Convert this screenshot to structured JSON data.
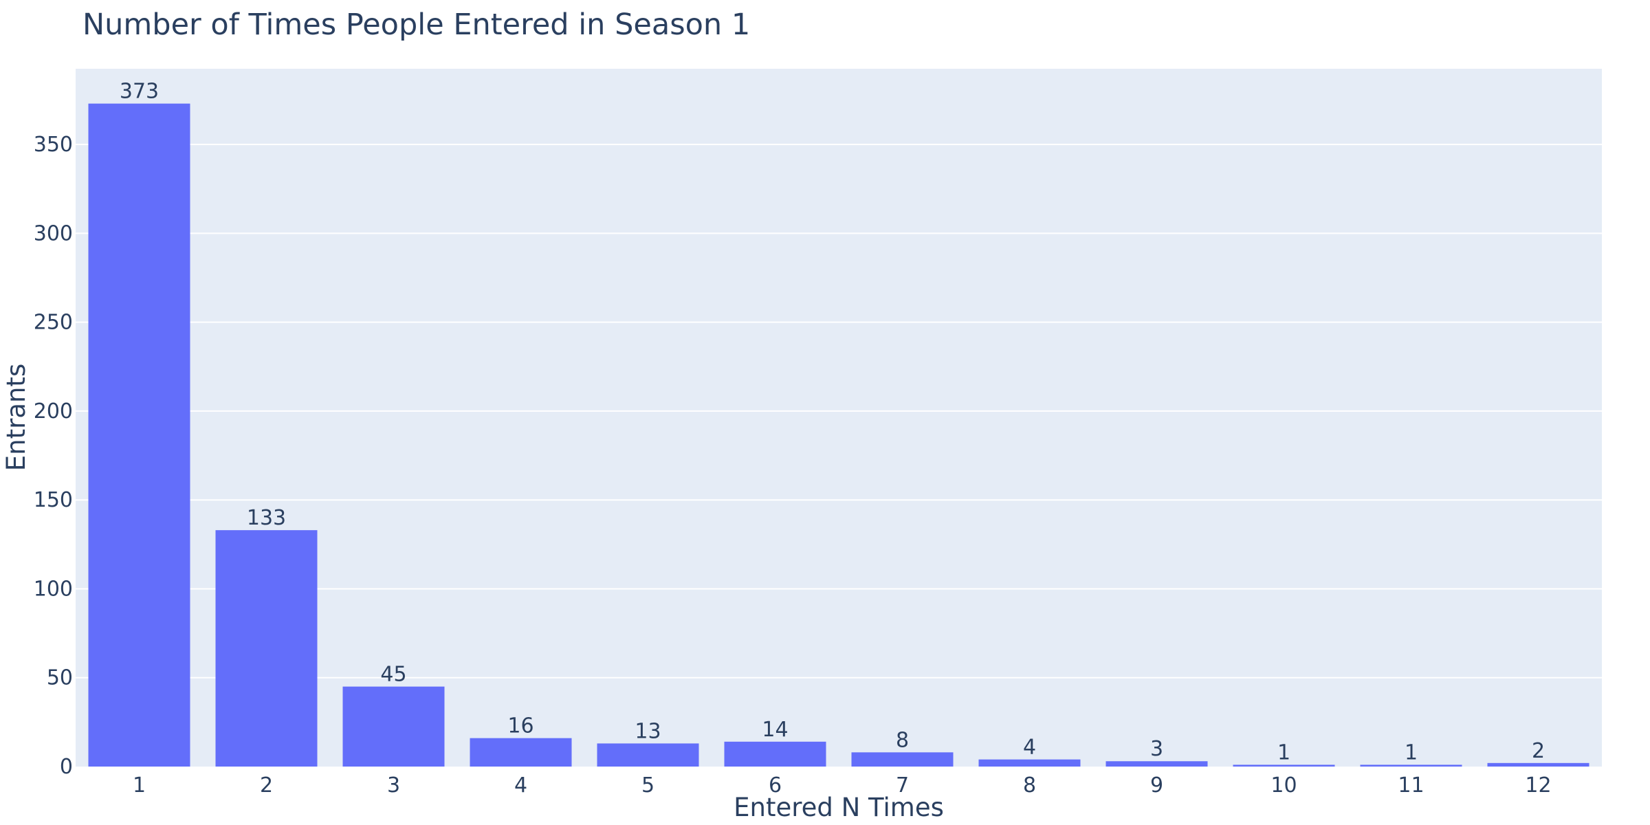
{
  "chart_data": {
    "type": "bar",
    "title": "Number of Times People Entered in Season 1",
    "xlabel": "Entered N Times",
    "ylabel": "Entrants",
    "categories": [
      "1",
      "2",
      "3",
      "4",
      "5",
      "6",
      "7",
      "8",
      "9",
      "10",
      "11",
      "12"
    ],
    "values": [
      373,
      133,
      45,
      16,
      13,
      14,
      8,
      4,
      3,
      1,
      1,
      2
    ],
    "ylim": [
      0,
      392.6
    ],
    "yticks": [
      0,
      50,
      100,
      150,
      200,
      250,
      300,
      350
    ],
    "grid": true,
    "legend": "none",
    "colors": {
      "bar": "#636efa",
      "plot_background": "#e5ecf6",
      "grid": "#ffffff",
      "text": "#2a3f5f"
    }
  }
}
